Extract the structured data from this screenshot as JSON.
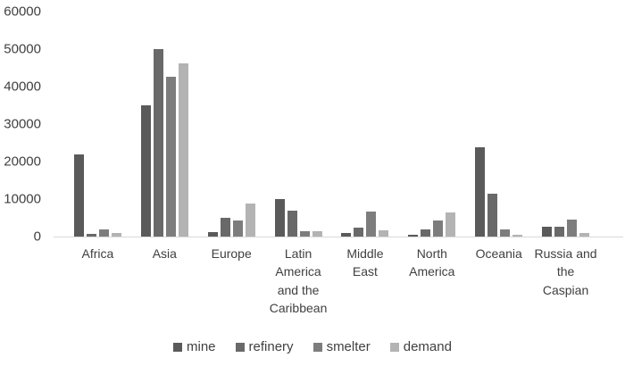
{
  "chart_data": {
    "type": "bar",
    "title": "",
    "xlabel": "",
    "ylabel": "",
    "ylim": [
      0,
      60000
    ],
    "yticks": [
      0,
      10000,
      20000,
      30000,
      40000,
      50000,
      60000
    ],
    "grid": false,
    "legend_position": "bottom",
    "axis_color": "#d9d9d9",
    "text_color": "#404040",
    "categories": [
      {
        "label": "Africa",
        "lines": [
          "Africa"
        ]
      },
      {
        "label": "Asia",
        "lines": [
          "Asia"
        ]
      },
      {
        "label": "Europe",
        "lines": [
          "Europe"
        ]
      },
      {
        "label": "Latin America and the Caribbean",
        "lines": [
          "Latin",
          "America",
          "and the",
          "Caribbean"
        ]
      },
      {
        "label": "Middle East",
        "lines": [
          "Middle",
          "East"
        ]
      },
      {
        "label": "North America",
        "lines": [
          "North",
          "America"
        ]
      },
      {
        "label": "Oceania",
        "lines": [
          "Oceania"
        ]
      },
      {
        "label": "Russia and the Caspian",
        "lines": [
          "Russia and",
          "the",
          "Caspian"
        ]
      }
    ],
    "series": [
      {
        "name": "mine",
        "color": "#5a5a5a",
        "values": [
          22000,
          35000,
          1200,
          9900,
          1000,
          400,
          23700,
          2700
        ]
      },
      {
        "name": "refinery",
        "color": "#696969",
        "values": [
          600,
          50000,
          4900,
          6800,
          2300,
          1800,
          11400,
          2500
        ]
      },
      {
        "name": "smelter",
        "color": "#7d7d7d",
        "values": [
          1800,
          42500,
          4300,
          1400,
          6600,
          4400,
          2000,
          4500
        ]
      },
      {
        "name": "demand",
        "color": "#b3b3b3",
        "values": [
          900,
          46300,
          8900,
          1400,
          1700,
          6400,
          500,
          900
        ]
      }
    ]
  }
}
